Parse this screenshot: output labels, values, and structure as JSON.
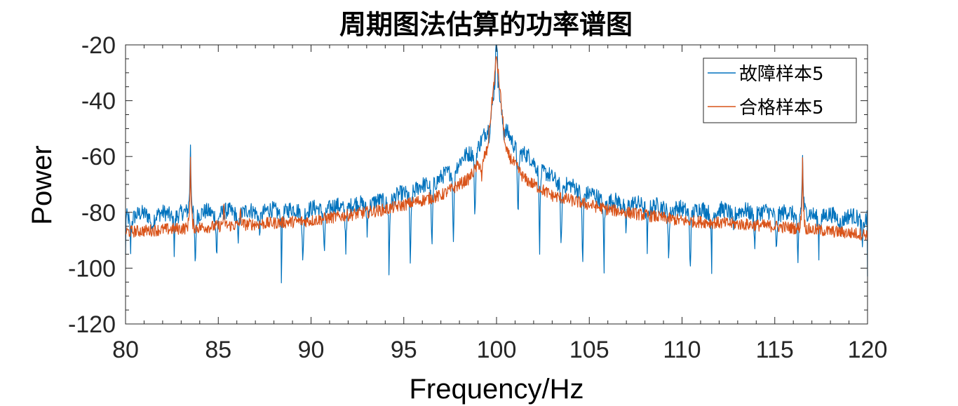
{
  "chart_data": {
    "type": "line",
    "title": "周期图法估算的功率谱图",
    "xlabel": "Frequency/Hz",
    "ylabel": "Power",
    "xlim": [
      80,
      120
    ],
    "ylim": [
      -120,
      -20
    ],
    "x_ticks": [
      80,
      85,
      90,
      95,
      100,
      105,
      110,
      115,
      120
    ],
    "y_ticks": [
      -120,
      -100,
      -80,
      -60,
      -40,
      -20
    ],
    "x_tick_labels": [
      "80",
      "85",
      "90",
      "95",
      "100",
      "105",
      "110",
      "115",
      "120"
    ],
    "y_tick_labels": [
      "-120",
      "-100",
      "-80",
      "-60",
      "-40",
      "-20"
    ],
    "grid": false,
    "legend_position": "top-right",
    "series": [
      {
        "name": "故障样本5",
        "color": "#0072BD",
        "model": {
          "base": [
            [
              80,
              -83
            ],
            [
              85,
              -82
            ],
            [
              90,
              -81
            ],
            [
              94,
              -78
            ],
            [
              97,
              -70
            ],
            [
              99,
              -58
            ],
            [
              99.6,
              -52
            ],
            [
              100,
              -28
            ],
            [
              100.4,
              -52
            ],
            [
              101,
              -58
            ],
            [
              103,
              -70
            ],
            [
              106,
              -78
            ],
            [
              110,
              -81
            ],
            [
              115,
              -82
            ],
            [
              120,
              -84
            ]
          ],
          "carrier_hz": 100,
          "carrier_peak": -20,
          "sidelobe_spacing_hz": 1.16,
          "null_depths": [
            -85,
            -90,
            -95,
            -100,
            -103
          ],
          "spikes": [
            [
              83.5,
              -55
            ],
            [
              116.5,
              -60
            ]
          ],
          "noise_amplitude": 3,
          "start_value": -95,
          "end_value": -103
        }
      },
      {
        "name": "合格样本5",
        "color": "#D95319",
        "model": {
          "base": [
            [
              80,
              -87
            ],
            [
              85,
              -85
            ],
            [
              90,
              -83
            ],
            [
              94,
              -79
            ],
            [
              97,
              -74
            ],
            [
              98.5,
              -68
            ],
            [
              99.5,
              -58
            ],
            [
              100,
              -24
            ],
            [
              100.5,
              -58
            ],
            [
              101.5,
              -68
            ],
            [
              103,
              -74
            ],
            [
              106,
              -79
            ],
            [
              110,
              -83
            ],
            [
              115,
              -85
            ],
            [
              120,
              -88
            ]
          ],
          "spikes": [
            [
              83.5,
              -61
            ],
            [
              116.5,
              -61
            ],
            [
              85.3,
              -79
            ],
            [
              86.2,
              -80
            ],
            [
              99.2,
              -70
            ]
          ],
          "noise_amplitude": 2.2
        }
      }
    ]
  }
}
